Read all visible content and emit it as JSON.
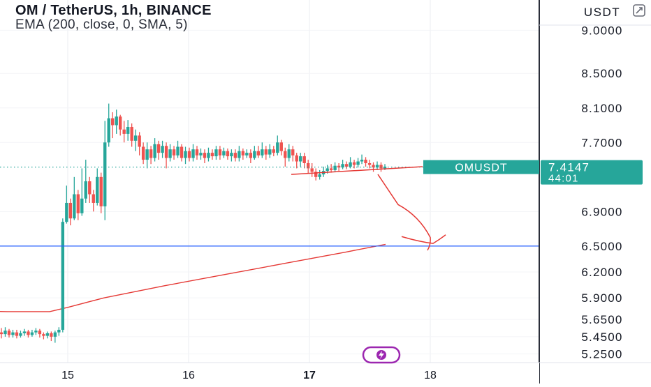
{
  "header": {
    "symbol_line": "OM / TetherUS, 1h, BINANCE",
    "indicator_line": "EMA (200, close, 0, SMA, 5)"
  },
  "price_axis": {
    "currency_label": "USDT",
    "ticks": [
      "9.0000",
      "8.5000",
      "8.1000",
      "7.7000",
      "6.9000",
      "6.5000",
      "6.2000",
      "5.9000",
      "5.6500",
      "5.4500",
      "5.2500"
    ]
  },
  "time_axis": {
    "ticks": [
      "15",
      "16",
      "17",
      "18"
    ]
  },
  "last_price": {
    "symbol": "OMUSDT",
    "price": "7.4147",
    "countdown": "44:01",
    "color": "#26a69a"
  },
  "horizontal_line": {
    "price": 6.5,
    "color": "#2962ff"
  },
  "colors": {
    "up": "#26a69a",
    "down": "#ef5350",
    "ema": "#e53935",
    "drawing": "#e53935"
  },
  "icons": {
    "logo": "lightning-icon",
    "settings": "settings-icon"
  },
  "chart_data": {
    "type": "candlestick",
    "title": "OM / TetherUS, 1h, BINANCE",
    "xlabel": "",
    "ylabel": "",
    "x_ticks": [
      "15",
      "16",
      "17",
      "18"
    ],
    "ylim": [
      5.15,
      9.35
    ],
    "grid": true,
    "series": [
      {
        "name": "EMA (200, close, 0, SMA, 5)",
        "points": [
          [
            "14.0",
            5.76
          ],
          [
            "14.5",
            5.74
          ],
          [
            "14.85",
            5.74
          ],
          [
            "15.0",
            5.79
          ],
          [
            "15.3",
            5.9
          ],
          [
            "15.8",
            6.04
          ],
          [
            "16.3",
            6.17
          ],
          [
            "16.8",
            6.3
          ],
          [
            "17.3",
            6.43
          ],
          [
            "17.63",
            6.52
          ]
        ]
      }
    ],
    "candles_ohlc": [
      [
        5.5,
        5.48,
        5.55,
        5.43
      ],
      [
        5.48,
        5.52,
        5.56,
        5.45
      ],
      [
        5.52,
        5.47,
        5.54,
        5.44
      ],
      [
        5.47,
        5.5,
        5.53,
        5.44
      ],
      [
        5.5,
        5.46,
        5.53,
        5.43
      ],
      [
        5.46,
        5.49,
        5.52,
        5.44
      ],
      [
        5.49,
        5.51,
        5.54,
        5.46
      ],
      [
        5.51,
        5.47,
        5.53,
        5.44
      ],
      [
        5.47,
        5.5,
        5.53,
        5.45
      ],
      [
        5.5,
        5.52,
        5.55,
        5.47
      ],
      [
        5.52,
        5.48,
        5.54,
        5.44
      ],
      [
        5.48,
        5.46,
        5.5,
        5.42
      ],
      [
        5.46,
        5.49,
        5.51,
        5.43
      ],
      [
        5.49,
        5.45,
        5.51,
        5.4
      ],
      [
        5.45,
        5.5,
        5.52,
        5.38
      ],
      [
        5.5,
        5.53,
        5.56,
        5.46
      ],
      [
        5.53,
        6.78,
        6.82,
        5.5
      ],
      [
        6.78,
        7.0,
        7.2,
        6.76
      ],
      [
        7.0,
        6.82,
        7.05,
        6.74
      ],
      [
        6.82,
        7.1,
        7.3,
        6.8
      ],
      [
        7.1,
        6.88,
        7.15,
        6.8
      ],
      [
        6.88,
        7.05,
        7.4,
        6.85
      ],
      [
        7.05,
        7.25,
        7.5,
        7.0
      ],
      [
        7.25,
        7.1,
        7.3,
        7.0
      ],
      [
        7.1,
        7.0,
        7.15,
        6.9
      ],
      [
        7.0,
        7.3,
        7.4,
        6.97
      ],
      [
        7.3,
        6.96,
        7.35,
        6.88
      ],
      [
        6.96,
        7.7,
        7.95,
        6.8
      ],
      [
        7.7,
        7.98,
        8.15,
        7.65
      ],
      [
        7.98,
        7.9,
        8.05,
        7.75
      ],
      [
        7.9,
        8.0,
        8.08,
        7.8
      ],
      [
        8.0,
        7.85,
        8.02,
        7.78
      ],
      [
        7.85,
        7.8,
        7.95,
        7.7
      ],
      [
        7.8,
        7.88,
        7.96,
        7.72
      ],
      [
        7.88,
        7.72,
        7.92,
        7.65
      ],
      [
        7.72,
        7.78,
        7.85,
        7.6
      ],
      [
        7.78,
        7.65,
        7.82,
        7.55
      ],
      [
        7.65,
        7.5,
        7.7,
        7.45
      ],
      [
        7.5,
        7.62,
        7.7,
        7.4
      ],
      [
        7.62,
        7.52,
        7.66,
        7.45
      ],
      [
        7.52,
        7.68,
        7.75,
        7.48
      ],
      [
        7.68,
        7.58,
        7.72,
        7.5
      ],
      [
        7.58,
        7.66,
        7.72,
        7.52
      ],
      [
        7.66,
        7.52,
        7.7,
        7.4
      ],
      [
        7.52,
        7.62,
        7.68,
        7.48
      ],
      [
        7.62,
        7.55,
        7.66,
        7.5
      ],
      [
        7.55,
        7.65,
        7.72,
        7.52
      ],
      [
        7.65,
        7.52,
        7.68,
        7.48
      ],
      [
        7.52,
        7.6,
        7.65,
        7.45
      ],
      [
        7.6,
        7.52,
        7.64,
        7.48
      ],
      [
        7.52,
        7.62,
        7.68,
        7.48
      ],
      [
        7.62,
        7.55,
        7.66,
        7.5
      ],
      [
        7.55,
        7.58,
        7.63,
        7.5
      ],
      [
        7.58,
        7.52,
        7.62,
        7.46
      ],
      [
        7.52,
        7.58,
        7.64,
        7.48
      ],
      [
        7.58,
        7.54,
        7.62,
        7.5
      ],
      [
        7.54,
        7.62,
        7.66,
        7.5
      ],
      [
        7.62,
        7.55,
        7.66,
        7.5
      ],
      [
        7.55,
        7.6,
        7.64,
        7.52
      ],
      [
        7.6,
        7.54,
        7.63,
        7.5
      ],
      [
        7.54,
        7.58,
        7.62,
        7.48
      ],
      [
        7.58,
        7.52,
        7.62,
        7.48
      ],
      [
        7.52,
        7.6,
        7.66,
        7.48
      ],
      [
        7.6,
        7.55,
        7.63,
        7.5
      ],
      [
        7.55,
        7.58,
        7.62,
        7.52
      ],
      [
        7.58,
        7.52,
        7.62,
        7.46
      ],
      [
        7.52,
        7.6,
        7.66,
        7.5
      ],
      [
        7.6,
        7.55,
        7.66,
        7.52
      ],
      [
        7.55,
        7.62,
        7.7,
        7.52
      ],
      [
        7.62,
        7.56,
        7.66,
        7.5
      ],
      [
        7.56,
        7.62,
        7.68,
        7.52
      ],
      [
        7.62,
        7.58,
        7.66,
        7.54
      ],
      [
        7.58,
        7.7,
        7.78,
        7.55
      ],
      [
        7.7,
        7.6,
        7.73,
        7.55
      ],
      [
        7.6,
        7.52,
        7.64,
        7.42
      ],
      [
        7.52,
        7.62,
        7.68,
        7.48
      ],
      [
        7.62,
        7.55,
        7.66,
        7.48
      ],
      [
        7.55,
        7.48,
        7.58,
        7.4
      ],
      [
        7.48,
        7.54,
        7.58,
        7.42
      ],
      [
        7.54,
        7.46,
        7.58,
        7.4
      ],
      [
        7.46,
        7.4,
        7.5,
        7.34
      ],
      [
        7.4,
        7.36,
        7.46,
        7.3
      ],
      [
        7.36,
        7.3,
        7.4,
        7.26
      ],
      [
        7.3,
        7.33,
        7.38,
        7.27
      ],
      [
        7.33,
        7.37,
        7.42,
        7.3
      ],
      [
        7.37,
        7.4,
        7.44,
        7.34
      ],
      [
        7.4,
        7.38,
        7.45,
        7.35
      ],
      [
        7.38,
        7.43,
        7.47,
        7.36
      ],
      [
        7.43,
        7.41,
        7.46,
        7.37
      ],
      [
        7.41,
        7.45,
        7.5,
        7.39
      ],
      [
        7.45,
        7.42,
        7.48,
        7.39
      ],
      [
        7.42,
        7.47,
        7.53,
        7.4
      ],
      [
        7.47,
        7.44,
        7.5,
        7.4
      ],
      [
        7.44,
        7.48,
        7.52,
        7.41
      ],
      [
        7.48,
        7.5,
        7.56,
        7.45
      ],
      [
        7.5,
        7.46,
        7.53,
        7.42
      ],
      [
        7.46,
        7.44,
        7.5,
        7.4
      ],
      [
        7.44,
        7.41,
        7.47,
        7.36
      ],
      [
        7.41,
        7.44,
        7.48,
        7.38
      ],
      [
        7.44,
        7.4,
        7.47,
        7.36
      ],
      [
        7.4,
        7.42,
        7.45,
        7.38
      ]
    ]
  }
}
